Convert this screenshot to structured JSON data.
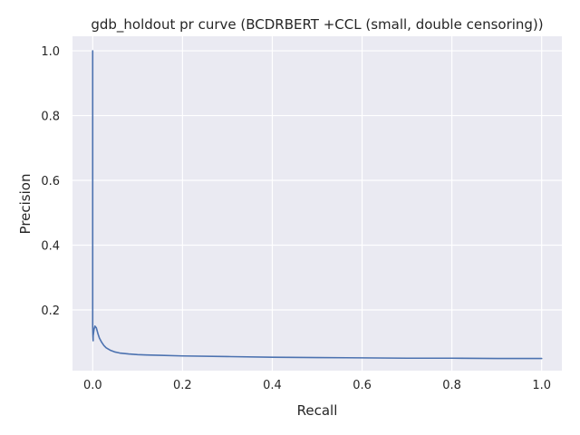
{
  "chart_data": {
    "type": "line",
    "title": "gdb_holdout pr curve (BCDRBERT +CCL (small, double censoring))",
    "xlabel": "Recall",
    "ylabel": "Precision",
    "xlim": [
      -0.045,
      1.045
    ],
    "ylim": [
      0.0125,
      1.045
    ],
    "grid": true,
    "legend": "none",
    "x_ticks": [
      0.0,
      0.2,
      0.4,
      0.6,
      0.8,
      1.0
    ],
    "x_tick_labels": [
      "0.0",
      "0.2",
      "0.4",
      "0.6",
      "0.8",
      "1.0"
    ],
    "y_ticks": [
      0.2,
      0.4,
      0.6,
      0.8,
      1.0
    ],
    "y_tick_labels": [
      "0.2",
      "0.4",
      "0.6",
      "0.8",
      "1.0"
    ],
    "colors": {
      "line": "#4c72b0",
      "background": "#eaeaf2",
      "grid": "#ffffff"
    },
    "series": [
      {
        "x": [
          0.0,
          0.0,
          0.0,
          0.0,
          0.0,
          0.0,
          0.0005,
          0.001,
          0.001,
          0.002,
          0.003,
          0.004,
          0.005,
          0.006,
          0.008,
          0.01,
          0.012,
          0.015,
          0.02,
          0.025,
          0.03,
          0.04,
          0.05,
          0.06,
          0.08,
          0.1,
          0.12,
          0.15,
          0.2,
          0.3,
          0.4,
          0.5,
          0.6,
          0.7,
          0.8,
          0.9,
          1.0
        ],
        "y": [
          1.0,
          0.67,
          0.5,
          0.33,
          0.24,
          0.15,
          0.12,
          0.105,
          0.12,
          0.13,
          0.14,
          0.145,
          0.15,
          0.148,
          0.145,
          0.135,
          0.125,
          0.113,
          0.1,
          0.09,
          0.083,
          0.075,
          0.07,
          0.067,
          0.064,
          0.062,
          0.061,
          0.06,
          0.058,
          0.056,
          0.054,
          0.053,
          0.052,
          0.051,
          0.051,
          0.05,
          0.05
        ]
      }
    ]
  }
}
